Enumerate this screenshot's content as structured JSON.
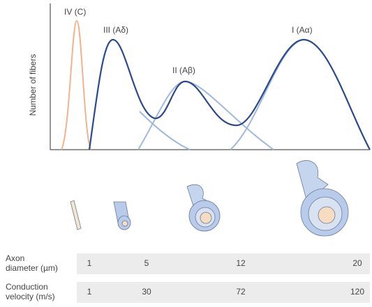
{
  "axis_label": "Number of fibers",
  "peaks": [
    {
      "label": "IV (C)"
    },
    {
      "label": "III (Aδ)"
    },
    {
      "label": "II (Aβ)"
    },
    {
      "label": "I (Aα)"
    }
  ],
  "table": {
    "rows": [
      {
        "label": [
          "Axon",
          "diameter (µm)"
        ],
        "values": [
          1,
          5,
          12,
          20
        ]
      },
      {
        "label": [
          "Conduction",
          "velocity (m/s)"
        ],
        "values": [
          1,
          30,
          72,
          120
        ]
      }
    ]
  }
}
